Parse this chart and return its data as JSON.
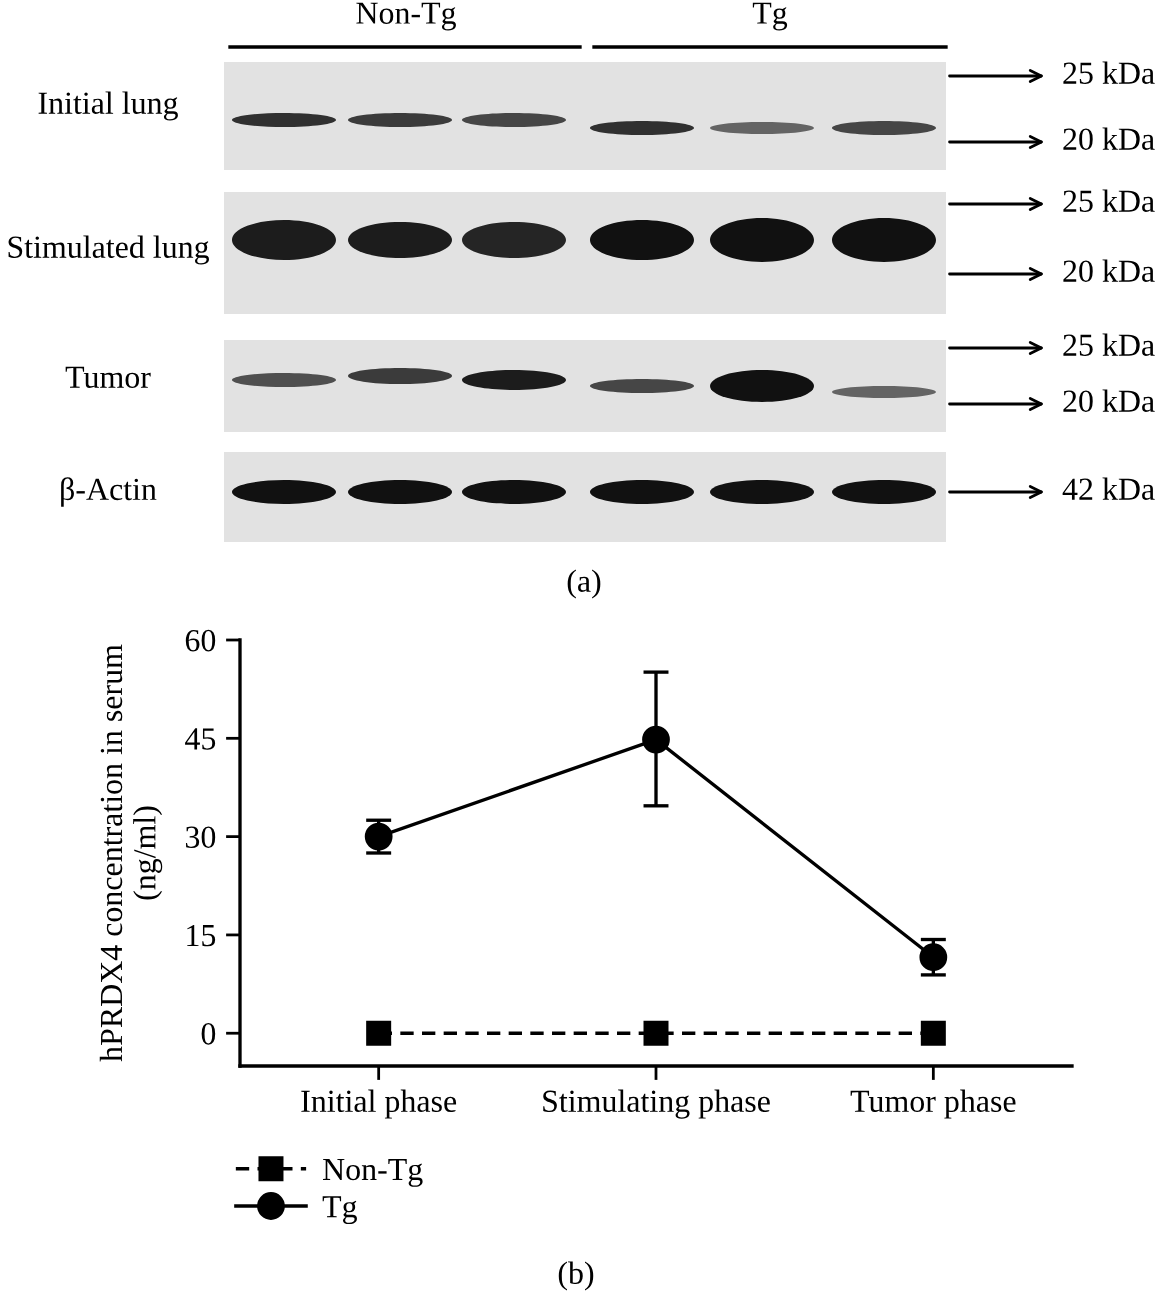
{
  "chart_data": [
    {
      "type": "other",
      "annotations": [
        "Non-Tg",
        "Tg",
        "Initial lung",
        "Stimulated lung",
        "Tumor",
        "β-Actin",
        "25 kDa",
        "20 kDa",
        "25 kDa",
        "20 kDa",
        "25 kDa",
        "20 kDa",
        "42 kDa",
        "(a)"
      ]
    },
    {
      "type": "line",
      "ylabel": "hPRDX4 concentration in serum\n(ng/ml)",
      "categories": [
        "Initial phase",
        "Stimulating phase",
        "Tumor phase"
      ],
      "series": [
        {
          "name": "Non-Tg",
          "color": "#000000",
          "values": [
            0,
            0,
            0
          ],
          "marker": "square",
          "line_style": "dashed"
        },
        {
          "name": "Tg",
          "color": "#000000",
          "values": [
            30,
            44.8,
            11.6
          ],
          "errors": [
            [
              27.5,
              32.5
            ],
            [
              34.7,
              55.1
            ],
            [
              8.9,
              14.3
            ]
          ],
          "marker": "circle",
          "line_style": "solid"
        }
      ],
      "ylim": [
        -5,
        60
      ],
      "yticks": [
        0,
        15,
        30,
        45,
        60
      ],
      "legend": "bottom left",
      "annotations": [
        "(b)"
      ]
    }
  ]
}
